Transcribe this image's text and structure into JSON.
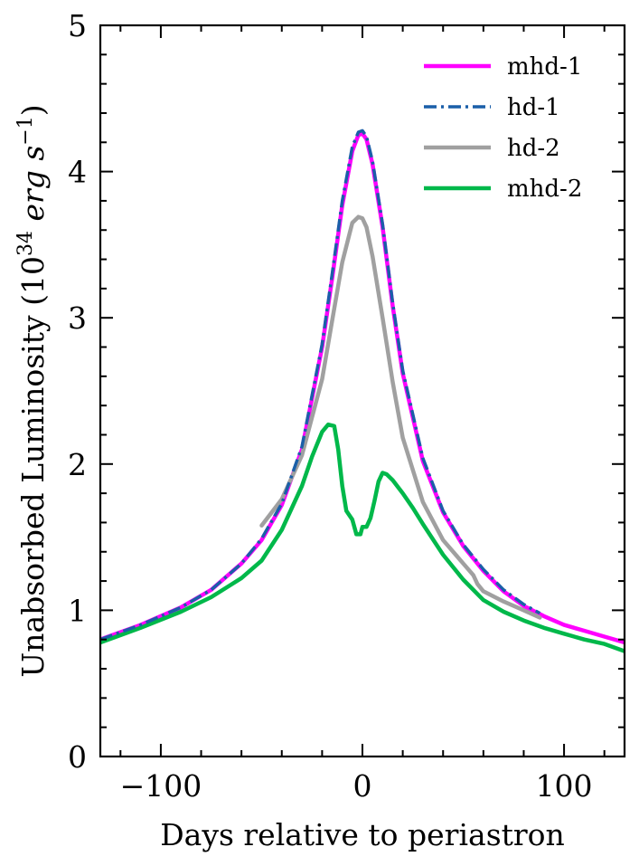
{
  "chart_data": {
    "type": "line",
    "xlabel": "Days relative to periastron",
    "ylabel": "Unabsorbed Luminosity (10^34 erg s^−1)",
    "ylabel_parts": {
      "prefix": "Unabsorbed Luminosity (10",
      "exponent": "34",
      "units": " erg s",
      "units_exponent": "−1",
      "suffix": ")"
    },
    "xlim": [
      -130,
      130
    ],
    "ylim": [
      0,
      5
    ],
    "xticks": [
      -100,
      0,
      100
    ],
    "xtick_labels": [
      "−100",
      "0",
      "100"
    ],
    "yticks": [
      0,
      1,
      2,
      3,
      4,
      5
    ],
    "ytick_labels": [
      "0",
      "1",
      "2",
      "3",
      "4",
      "5"
    ],
    "grid": false,
    "legend_position": "top-right",
    "series": [
      {
        "name": "mhd-1",
        "color": "#ff00ff",
        "style": "solid",
        "x": [
          -130,
          -110,
          -90,
          -75,
          -60,
          -50,
          -40,
          -30,
          -20,
          -15,
          -10,
          -5,
          -2,
          0,
          2,
          5,
          10,
          15,
          20,
          30,
          40,
          50,
          60,
          70,
          80,
          90,
          100,
          110,
          120,
          130
        ],
        "y": [
          0.8,
          0.9,
          1.02,
          1.14,
          1.32,
          1.48,
          1.72,
          2.1,
          2.8,
          3.27,
          3.77,
          4.14,
          4.25,
          4.26,
          4.22,
          4.05,
          3.62,
          3.08,
          2.62,
          2.02,
          1.67,
          1.44,
          1.27,
          1.13,
          1.03,
          0.96,
          0.9,
          0.86,
          0.82,
          0.78
        ]
      },
      {
        "name": "hd-1",
        "color": "#1a5fa8",
        "style": "dashdot",
        "x": [
          -130,
          -110,
          -90,
          -75,
          -60,
          -50,
          -40,
          -30,
          -20,
          -15,
          -10,
          -5,
          -2,
          0,
          2,
          5,
          10,
          15,
          20,
          30,
          40,
          50,
          60,
          70,
          80,
          88
        ],
        "y": [
          0.8,
          0.9,
          1.02,
          1.14,
          1.32,
          1.49,
          1.73,
          2.12,
          2.82,
          3.3,
          3.8,
          4.17,
          4.27,
          4.28,
          4.24,
          4.07,
          3.64,
          3.1,
          2.64,
          2.04,
          1.68,
          1.45,
          1.28,
          1.14,
          1.04,
          0.98
        ]
      },
      {
        "name": "hd-2",
        "color": "#a0a0a0",
        "style": "solid",
        "x": [
          -50,
          -40,
          -30,
          -20,
          -15,
          -10,
          -5,
          -2,
          0,
          2,
          5,
          10,
          15,
          20,
          30,
          40,
          50,
          55,
          57,
          60,
          70,
          80,
          88
        ],
        "y": [
          1.58,
          1.76,
          2.06,
          2.58,
          2.98,
          3.38,
          3.65,
          3.69,
          3.68,
          3.62,
          3.42,
          3.0,
          2.56,
          2.18,
          1.74,
          1.48,
          1.32,
          1.24,
          1.18,
          1.13,
          1.06,
          1.0,
          0.95
        ]
      },
      {
        "name": "mhd-2",
        "color": "#00b84a",
        "style": "solid",
        "x": [
          -130,
          -110,
          -90,
          -75,
          -60,
          -50,
          -40,
          -30,
          -25,
          -20,
          -17,
          -14,
          -12,
          -10,
          -8,
          -5,
          -3,
          -1,
          0,
          2,
          4,
          6,
          8,
          10,
          12,
          15,
          20,
          25,
          30,
          40,
          50,
          60,
          70,
          80,
          90,
          100,
          110,
          120,
          130
        ],
        "y": [
          0.78,
          0.88,
          0.99,
          1.09,
          1.22,
          1.34,
          1.55,
          1.85,
          2.05,
          2.22,
          2.27,
          2.26,
          2.1,
          1.85,
          1.68,
          1.62,
          1.52,
          1.52,
          1.57,
          1.57,
          1.63,
          1.75,
          1.88,
          1.94,
          1.93,
          1.89,
          1.8,
          1.7,
          1.59,
          1.38,
          1.21,
          1.07,
          0.99,
          0.93,
          0.88,
          0.84,
          0.8,
          0.77,
          0.72
        ]
      }
    ]
  }
}
